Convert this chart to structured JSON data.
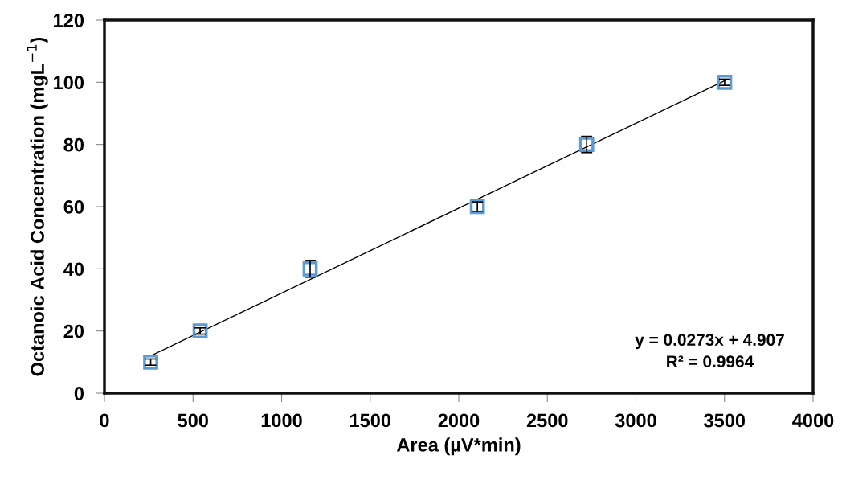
{
  "chart_data": {
    "type": "scatter",
    "xlabel": "Area (µV*min)",
    "ylabel": "Octanoic Acid Concentration (mgL$^{−1}$)",
    "xlim": [
      0,
      4000
    ],
    "xticks": [
      0,
      500,
      1000,
      1500,
      2000,
      2500,
      3000,
      3500,
      4000
    ],
    "ylim": [
      0,
      120
    ],
    "yticks": [
      0,
      20,
      40,
      60,
      80,
      100,
      120
    ],
    "grid": false,
    "series": [
      {
        "marker": "square",
        "color": "#5b9bd5",
        "x": [
          261,
          540,
          1161,
          2105,
          2722,
          3501
        ],
        "values": [
          10,
          20,
          40,
          60,
          80,
          100
        ],
        "errors": [
          1,
          1,
          2.7,
          1.5,
          2.6,
          1
        ]
      },
      {
        "type": "line",
        "color": "#000000",
        "x": [
          261,
          3501
        ],
        "values": [
          12,
          100.5
        ],
        "line_style": "solid"
      }
    ],
    "annotations": [
      "y = 0.0273x + 4.907\nR² = 0.9964"
    ]
  }
}
